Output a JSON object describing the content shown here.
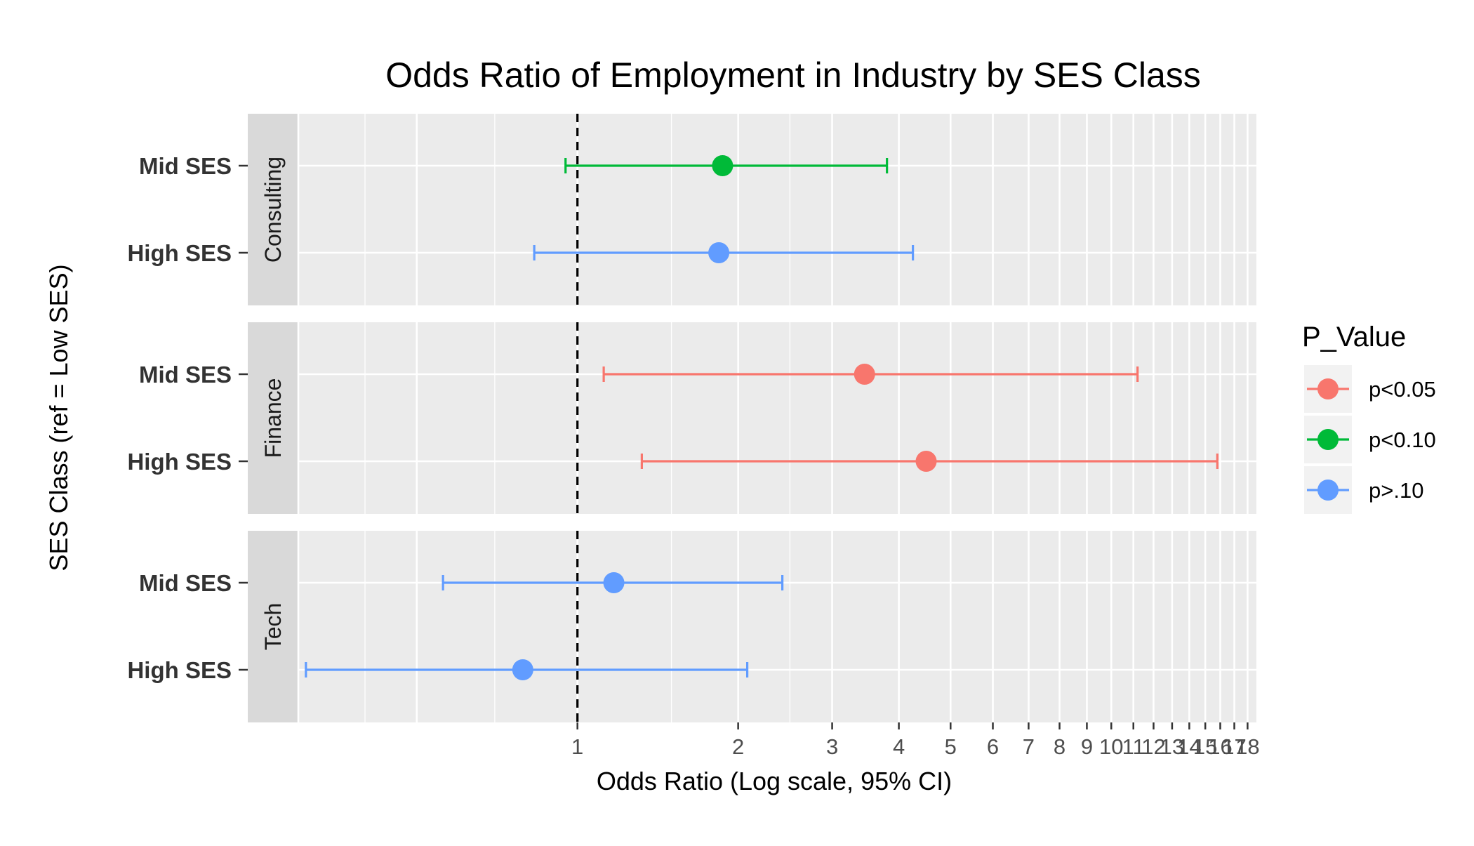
{
  "chart_data": {
    "type": "forest",
    "title": "Odds Ratio of Employment in Industry by SES Class",
    "xlabel": "Odds Ratio (Log scale, 95% CI)",
    "ylabel": "SES Class (ref = Low SES)",
    "x_scale": "log",
    "xlim": [
      0.3,
      18.7
    ],
    "x_ticks": [
      "1",
      "2",
      "3",
      "4",
      "5",
      "6",
      "7",
      "8",
      "9",
      "10",
      "11",
      "12",
      "13",
      "14",
      "15",
      "16",
      "17",
      "18"
    ],
    "reference_line": 1,
    "categories": [
      "Mid SES",
      "High SES"
    ],
    "panels": [
      {
        "name": "Consulting",
        "rows": [
          {
            "label": "Mid SES",
            "or": 1.87,
            "lower": 0.95,
            "upper": 3.8,
            "p_group": "p<0.10"
          },
          {
            "label": "High SES",
            "or": 1.84,
            "lower": 0.83,
            "upper": 4.25,
            "p_group": "p>.10"
          }
        ]
      },
      {
        "name": "Finance",
        "rows": [
          {
            "label": "Mid SES",
            "or": 3.45,
            "lower": 1.12,
            "upper": 11.2,
            "p_group": "p<0.05"
          },
          {
            "label": "High SES",
            "or": 4.5,
            "lower": 1.32,
            "upper": 15.8,
            "p_group": "p<0.05"
          }
        ]
      },
      {
        "name": "Tech",
        "rows": [
          {
            "label": "Mid SES",
            "or": 1.17,
            "lower": 0.56,
            "upper": 2.42,
            "p_group": "p>.10"
          },
          {
            "label": "High SES",
            "or": 0.79,
            "lower": 0.31,
            "upper": 2.08,
            "p_group": "p>.10"
          }
        ]
      }
    ],
    "legend": {
      "title": "P_Value",
      "position": "right",
      "entries": [
        {
          "label": "p<0.05",
          "color": "#F8766D"
        },
        {
          "label": "p<0.10",
          "color": "#00BA38"
        },
        {
          "label": "p>.10",
          "color": "#619CFF"
        }
      ]
    },
    "grid": true,
    "panel_background": "#EBEBEB",
    "strip_background": "#D9D9D9"
  }
}
